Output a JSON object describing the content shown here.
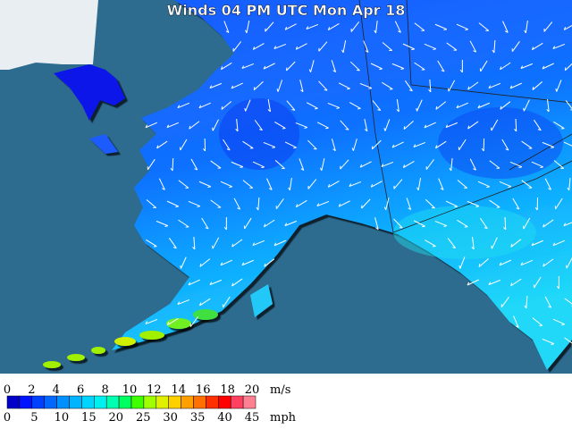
{
  "title": "Winds 04 PM UTC Mon Apr 18",
  "legend": {
    "ms_labels": [
      0,
      2,
      4,
      6,
      8,
      10,
      12,
      14,
      16,
      18,
      20
    ],
    "ms_unit": "m/s",
    "mph_labels": [
      0,
      5,
      10,
      15,
      20,
      25,
      30,
      35,
      40,
      45
    ],
    "mph_unit": "mph",
    "colors": [
      "#0000c8",
      "#0014ff",
      "#0040ff",
      "#0068ff",
      "#0090ff",
      "#00b4ff",
      "#00d4ff",
      "#00f0f0",
      "#00ffb0",
      "#00ff60",
      "#40ff00",
      "#a0ff00",
      "#e0f000",
      "#ffd000",
      "#ffa000",
      "#ff7000",
      "#ff3000",
      "#ff0000",
      "#ff4060",
      "#ff8090"
    ]
  }
}
